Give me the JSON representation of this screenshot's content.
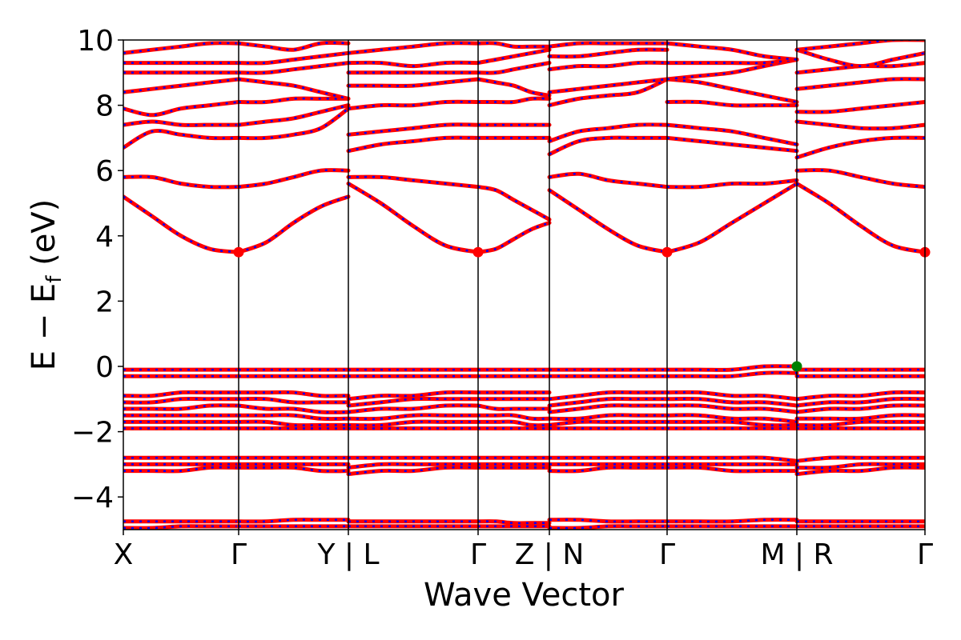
{
  "chart_data": {
    "type": "line",
    "title": "",
    "xlabel": "Wave Vector",
    "ylabel": "E − E",
    "ylabel_subscript": "f",
    "ylabel_unit": " (eV)",
    "ylim": [
      -5,
      10
    ],
    "yticks": [
      -4,
      -2,
      0,
      2,
      4,
      6,
      8,
      10
    ],
    "ytick_labels": [
      "−4",
      "−2",
      "0",
      "2",
      "4",
      "6",
      "8",
      "10"
    ],
    "kpath_segments": [
      "X-Γ",
      "Γ-Y",
      "L-Γ",
      "Γ-Z",
      "N-Γ",
      "Γ-M",
      "R-Γ"
    ],
    "xtick_labels": [
      "X",
      "Γ",
      "Y | L",
      "Γ",
      "Z | N",
      "Γ",
      "M | R",
      "Γ"
    ],
    "colors": {
      "spin_up": "#ff0000",
      "spin_down": "#0000ff",
      "cbm_marker": "#ff0000",
      "vbm_marker": "#008000"
    },
    "markers": [
      {
        "name": "CBM",
        "segment": 0,
        "t": 1,
        "energy": 3.5,
        "color": "#ff0000"
      },
      {
        "name": "CBM",
        "segment": 2,
        "t": 1,
        "energy": 3.5,
        "color": "#ff0000"
      },
      {
        "name": "CBM",
        "segment": 4,
        "t": 1,
        "energy": 3.5,
        "color": "#ff0000"
      },
      {
        "name": "CBM",
        "segment": 6,
        "t": 1,
        "energy": 3.5,
        "color": "#ff0000"
      },
      {
        "name": "VBM",
        "segment": 5,
        "t": 1,
        "energy": 0.0,
        "color": "#008000"
      }
    ],
    "series": [
      {
        "segment": 0,
        "bands": [
          [
            5.2,
            4.6,
            4.0,
            3.6,
            3.5
          ],
          [
            5.8,
            5.8,
            5.6,
            5.5,
            5.5
          ],
          [
            6.7,
            7.2,
            7.1,
            7.0,
            7.0
          ],
          [
            7.4,
            7.5,
            7.4,
            7.4,
            7.4
          ],
          [
            7.9,
            7.7,
            7.9,
            8.0,
            8.1
          ],
          [
            8.4,
            8.5,
            8.6,
            8.7,
            8.8
          ],
          [
            9.0,
            9.0,
            9.0,
            9.0,
            9.0
          ],
          [
            9.3,
            9.3,
            9.3,
            9.3,
            9.3
          ],
          [
            9.6,
            9.7,
            9.8,
            9.9,
            9.9
          ],
          [
            -0.1,
            -0.1,
            -0.1,
            -0.1,
            -0.1
          ],
          [
            -0.3,
            -0.3,
            -0.3,
            -0.3,
            -0.3
          ],
          [
            -0.9,
            -0.9,
            -0.8,
            -0.8,
            -0.8
          ],
          [
            -1.1,
            -1.1,
            -1.0,
            -1.0,
            -1.0
          ],
          [
            -1.3,
            -1.3,
            -1.3,
            -1.2,
            -1.2
          ],
          [
            -1.5,
            -1.5,
            -1.5,
            -1.5,
            -1.5
          ],
          [
            -1.7,
            -1.7,
            -1.7,
            -1.7,
            -1.7
          ],
          [
            -1.9,
            -1.9,
            -1.9,
            -1.9,
            -1.9
          ],
          [
            -2.8,
            -2.8,
            -2.8,
            -2.8,
            -2.8
          ],
          [
            -3.0,
            -3.0,
            -3.0,
            -3.0,
            -3.0
          ],
          [
            -3.2,
            -3.2,
            -3.2,
            -3.1,
            -3.1
          ],
          [
            -4.75,
            -4.75,
            -4.75,
            -4.75,
            -4.75
          ],
          [
            -4.95,
            -4.95,
            -4.9,
            -4.9,
            -4.9
          ]
        ]
      },
      {
        "segment": 1,
        "bands": [
          [
            3.5,
            3.8,
            4.4,
            4.9,
            5.2
          ],
          [
            5.5,
            5.6,
            5.8,
            6.0,
            6.0
          ],
          [
            7.0,
            7.0,
            7.1,
            7.3,
            7.9
          ],
          [
            7.4,
            7.5,
            7.6,
            7.8,
            8.0
          ],
          [
            8.1,
            8.1,
            8.2,
            8.2,
            8.2
          ],
          [
            8.8,
            8.7,
            8.6,
            8.4,
            8.2
          ],
          [
            9.0,
            9.0,
            9.1,
            9.2,
            9.3
          ],
          [
            9.3,
            9.3,
            9.4,
            9.5,
            9.6
          ],
          [
            9.9,
            9.8,
            9.7,
            9.9,
            9.9
          ],
          [
            -0.1,
            -0.1,
            -0.1,
            -0.1,
            -0.1
          ],
          [
            -0.3,
            -0.3,
            -0.3,
            -0.3,
            -0.3
          ],
          [
            -0.8,
            -0.8,
            -0.8,
            -0.9,
            -0.9
          ],
          [
            -1.0,
            -1.0,
            -1.1,
            -1.1,
            -1.1
          ],
          [
            -1.2,
            -1.3,
            -1.3,
            -1.4,
            -1.4
          ],
          [
            -1.5,
            -1.5,
            -1.5,
            -1.6,
            -1.6
          ],
          [
            -1.7,
            -1.7,
            -1.8,
            -1.8,
            -1.8
          ],
          [
            -1.9,
            -1.9,
            -1.9,
            -1.9,
            -1.9
          ],
          [
            -2.8,
            -2.8,
            -2.8,
            -2.8,
            -2.8
          ],
          [
            -3.0,
            -3.0,
            -3.0,
            -3.0,
            -3.0
          ],
          [
            -3.1,
            -3.1,
            -3.1,
            -3.2,
            -3.2
          ],
          [
            -4.75,
            -4.75,
            -4.7,
            -4.7,
            -4.7
          ],
          [
            -4.9,
            -4.9,
            -4.9,
            -4.9,
            -4.9
          ]
        ]
      },
      {
        "segment": 2,
        "bands": [
          [
            5.6,
            5.0,
            4.3,
            3.7,
            3.5
          ],
          [
            5.8,
            5.8,
            5.7,
            5.6,
            5.5
          ],
          [
            6.6,
            6.8,
            6.9,
            7.0,
            7.0
          ],
          [
            7.1,
            7.2,
            7.3,
            7.4,
            7.4
          ],
          [
            7.9,
            8.0,
            8.0,
            8.1,
            8.1
          ],
          [
            8.6,
            8.6,
            8.6,
            8.7,
            8.8
          ],
          [
            9.0,
            9.0,
            9.0,
            9.0,
            9.0
          ],
          [
            9.3,
            9.3,
            9.2,
            9.3,
            9.3
          ],
          [
            9.6,
            9.7,
            9.8,
            9.9,
            9.9
          ],
          [
            -0.1,
            -0.1,
            -0.1,
            -0.1,
            -0.1
          ],
          [
            -0.3,
            -0.3,
            -0.3,
            -0.3,
            -0.3
          ],
          [
            -1.0,
            -0.9,
            -0.9,
            -0.8,
            -0.8
          ],
          [
            -1.2,
            -1.1,
            -1.0,
            -1.0,
            -1.0
          ],
          [
            -1.4,
            -1.3,
            -1.3,
            -1.2,
            -1.2
          ],
          [
            -1.6,
            -1.6,
            -1.5,
            -1.5,
            -1.5
          ],
          [
            -1.8,
            -1.8,
            -1.7,
            -1.7,
            -1.7
          ],
          [
            -1.9,
            -1.9,
            -1.9,
            -1.9,
            -1.9
          ],
          [
            -2.8,
            -2.8,
            -2.8,
            -2.8,
            -2.8
          ],
          [
            -3.1,
            -3.0,
            -3.0,
            -3.0,
            -3.0
          ],
          [
            -3.3,
            -3.2,
            -3.2,
            -3.1,
            -3.1
          ],
          [
            -4.75,
            -4.75,
            -4.75,
            -4.75,
            -4.75
          ],
          [
            -4.9,
            -4.9,
            -4.9,
            -4.9,
            -4.9
          ]
        ]
      },
      {
        "segment": 3,
        "bands": [
          [
            3.5,
            3.6,
            3.9,
            4.2,
            4.4
          ],
          [
            5.5,
            5.4,
            5.1,
            4.8,
            4.5
          ],
          [
            7.0,
            7.0,
            7.0,
            7.0,
            7.0
          ],
          [
            7.4,
            7.4,
            7.4,
            7.4,
            7.4
          ],
          [
            8.1,
            8.1,
            8.1,
            8.2,
            8.2
          ],
          [
            8.8,
            8.7,
            8.6,
            8.4,
            8.3
          ],
          [
            9.0,
            9.0,
            9.1,
            9.2,
            9.3
          ],
          [
            9.3,
            9.4,
            9.5,
            9.6,
            9.7
          ],
          [
            9.9,
            9.9,
            9.8,
            9.8,
            9.8
          ],
          [
            -0.1,
            -0.1,
            -0.1,
            -0.1,
            -0.1
          ],
          [
            -0.3,
            -0.3,
            -0.3,
            -0.3,
            -0.3
          ],
          [
            -0.8,
            -0.8,
            -0.8,
            -0.8,
            -0.8
          ],
          [
            -1.0,
            -1.0,
            -1.0,
            -1.0,
            -1.0
          ],
          [
            -1.2,
            -1.3,
            -1.3,
            -1.3,
            -1.3
          ],
          [
            -1.5,
            -1.5,
            -1.5,
            -1.6,
            -1.6
          ],
          [
            -1.7,
            -1.7,
            -1.7,
            -1.8,
            -1.8
          ],
          [
            -1.9,
            -1.9,
            -1.9,
            -1.9,
            -1.9
          ],
          [
            -2.8,
            -2.8,
            -2.8,
            -2.8,
            -2.8
          ],
          [
            -3.0,
            -3.0,
            -3.0,
            -3.0,
            -3.0
          ],
          [
            -3.1,
            -3.1,
            -3.1,
            -3.1,
            -3.1
          ],
          [
            -4.75,
            -4.75,
            -4.8,
            -4.8,
            -4.8
          ],
          [
            -4.9,
            -4.9,
            -4.9,
            -4.9,
            -4.9
          ]
        ]
      },
      {
        "segment": 4,
        "bands": [
          [
            5.4,
            4.8,
            4.2,
            3.7,
            3.5
          ],
          [
            5.8,
            5.9,
            5.7,
            5.6,
            5.5
          ],
          [
            6.5,
            6.9,
            7.0,
            7.0,
            7.0
          ],
          [
            6.9,
            7.2,
            7.3,
            7.4,
            7.4
          ],
          [
            8.0,
            8.2,
            8.3,
            8.4,
            8.8
          ],
          [
            8.4,
            8.5,
            8.6,
            8.7,
            8.8
          ],
          [
            9.1,
            9.2,
            9.2,
            9.3,
            9.3
          ],
          [
            9.5,
            9.5,
            9.6,
            9.7,
            9.7
          ],
          [
            9.8,
            9.9,
            9.9,
            9.9,
            9.9
          ],
          [
            -0.1,
            -0.1,
            -0.1,
            -0.1,
            -0.1
          ],
          [
            -0.3,
            -0.3,
            -0.3,
            -0.3,
            -0.3
          ],
          [
            -1.0,
            -0.9,
            -0.8,
            -0.8,
            -0.8
          ],
          [
            -1.2,
            -1.1,
            -1.0,
            -1.0,
            -1.0
          ],
          [
            -1.4,
            -1.3,
            -1.2,
            -1.2,
            -1.2
          ],
          [
            -1.6,
            -1.6,
            -1.5,
            -1.5,
            -1.5
          ],
          [
            -1.8,
            -1.7,
            -1.7,
            -1.7,
            -1.7
          ],
          [
            -1.9,
            -1.9,
            -1.9,
            -1.9,
            -1.9
          ],
          [
            -2.8,
            -2.8,
            -2.8,
            -2.8,
            -2.8
          ],
          [
            -3.0,
            -3.0,
            -3.0,
            -3.0,
            -3.0
          ],
          [
            -3.2,
            -3.2,
            -3.1,
            -3.1,
            -3.1
          ],
          [
            -4.7,
            -4.7,
            -4.75,
            -4.75,
            -4.75
          ],
          [
            -4.95,
            -4.95,
            -4.9,
            -4.9,
            -4.9
          ]
        ]
      },
      {
        "segment": 5,
        "bands": [
          [
            3.5,
            3.8,
            4.4,
            5.0,
            5.6
          ],
          [
            5.5,
            5.5,
            5.6,
            5.6,
            5.7
          ],
          [
            7.0,
            6.9,
            6.8,
            6.7,
            6.6
          ],
          [
            7.4,
            7.3,
            7.2,
            7.0,
            6.8
          ],
          [
            8.1,
            8.1,
            8.0,
            8.0,
            8.0
          ],
          [
            8.8,
            8.7,
            8.5,
            8.3,
            8.1
          ],
          [
            8.8,
            8.9,
            9.0,
            9.2,
            9.4
          ],
          [
            9.3,
            9.3,
            9.3,
            9.3,
            9.4
          ],
          [
            9.9,
            9.8,
            9.7,
            9.5,
            9.4
          ],
          [
            -0.1,
            -0.1,
            -0.1,
            0.0,
            0.0
          ],
          [
            -0.3,
            -0.3,
            -0.3,
            -0.2,
            -0.2
          ],
          [
            -0.8,
            -0.8,
            -0.9,
            -0.9,
            -1.0
          ],
          [
            -1.0,
            -1.0,
            -1.1,
            -1.1,
            -1.2
          ],
          [
            -1.2,
            -1.2,
            -1.3,
            -1.3,
            -1.4
          ],
          [
            -1.5,
            -1.5,
            -1.6,
            -1.6,
            -1.7
          ],
          [
            -1.7,
            -1.7,
            -1.7,
            -1.8,
            -1.8
          ],
          [
            -1.9,
            -1.9,
            -1.9,
            -1.9,
            -1.9
          ],
          [
            -2.8,
            -2.8,
            -2.8,
            -2.8,
            -2.9
          ],
          [
            -3.0,
            -3.0,
            -3.0,
            -3.0,
            -3.0
          ],
          [
            -3.1,
            -3.1,
            -3.2,
            -3.2,
            -3.2
          ],
          [
            -4.75,
            -4.75,
            -4.75,
            -4.7,
            -4.7
          ],
          [
            -4.9,
            -4.9,
            -4.9,
            -4.9,
            -4.9
          ]
        ]
      },
      {
        "segment": 6,
        "bands": [
          [
            5.6,
            5.0,
            4.3,
            3.7,
            3.5
          ],
          [
            6.0,
            6.0,
            5.8,
            5.6,
            5.5
          ],
          [
            6.4,
            6.7,
            6.9,
            7.0,
            7.0
          ],
          [
            7.5,
            7.4,
            7.3,
            7.3,
            7.4
          ],
          [
            7.8,
            7.8,
            7.9,
            8.0,
            8.1
          ],
          [
            8.5,
            8.6,
            8.7,
            8.8,
            8.8
          ],
          [
            9.0,
            9.1,
            9.2,
            9.2,
            9.3
          ],
          [
            9.7,
            9.4,
            9.2,
            9.4,
            9.6
          ],
          [
            9.7,
            9.8,
            9.9,
            10.0,
            10.0
          ],
          [
            -0.1,
            -0.1,
            -0.1,
            -0.1,
            -0.1
          ],
          [
            -0.3,
            -0.3,
            -0.3,
            -0.3,
            -0.3
          ],
          [
            -1.0,
            -0.9,
            -0.9,
            -0.8,
            -0.8
          ],
          [
            -1.2,
            -1.1,
            -1.1,
            -1.0,
            -1.0
          ],
          [
            -1.4,
            -1.3,
            -1.3,
            -1.2,
            -1.2
          ],
          [
            -1.6,
            -1.6,
            -1.6,
            -1.5,
            -1.5
          ],
          [
            -1.8,
            -1.8,
            -1.7,
            -1.7,
            -1.7
          ],
          [
            -1.9,
            -1.9,
            -1.9,
            -1.9,
            -1.9
          ],
          [
            -2.9,
            -2.8,
            -2.8,
            -2.8,
            -2.8
          ],
          [
            -3.1,
            -3.1,
            -3.0,
            -3.0,
            -3.0
          ],
          [
            -3.3,
            -3.2,
            -3.2,
            -3.1,
            -3.1
          ],
          [
            -4.75,
            -4.75,
            -4.75,
            -4.75,
            -4.75
          ],
          [
            -4.9,
            -4.9,
            -4.9,
            -4.9,
            -4.9
          ]
        ]
      }
    ]
  }
}
